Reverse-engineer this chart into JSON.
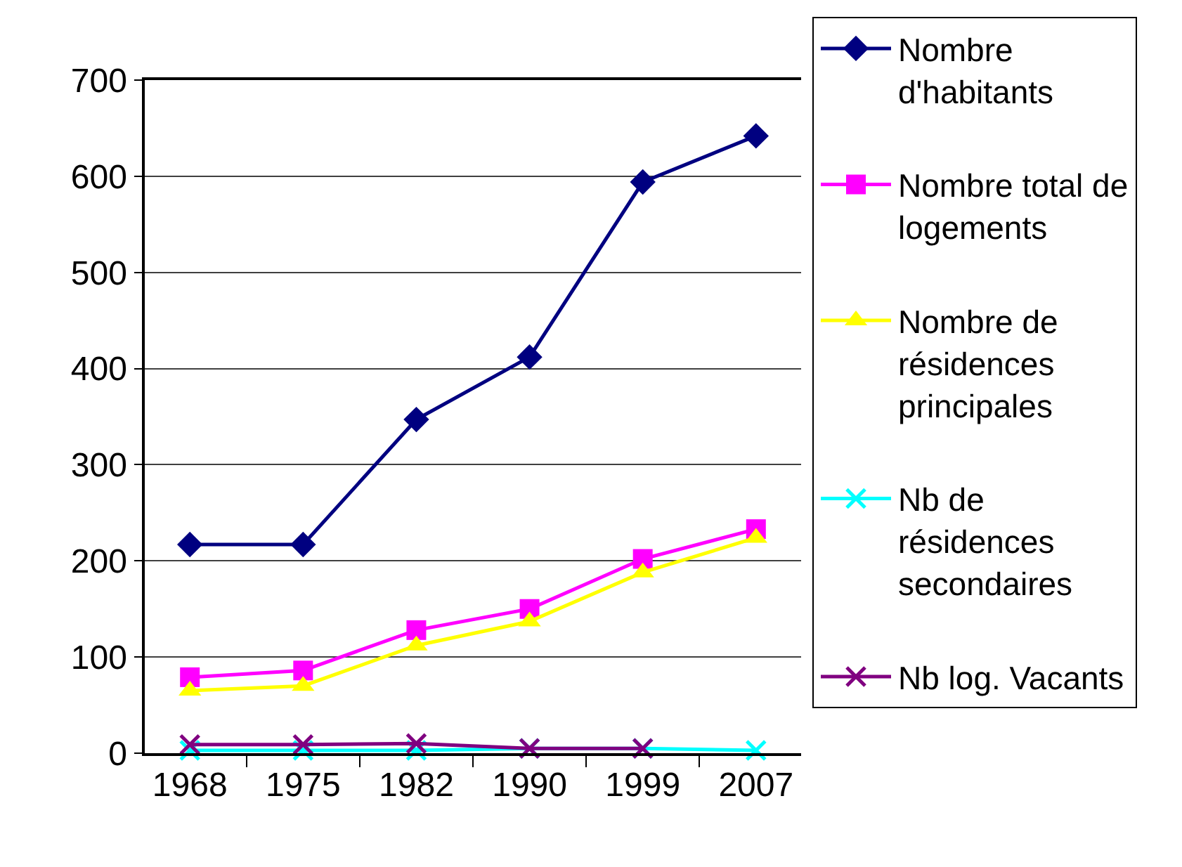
{
  "chart_data": {
    "type": "line",
    "categories": [
      "1968",
      "1975",
      "1982",
      "1990",
      "1999",
      "2007"
    ],
    "ylim": [
      0,
      700
    ],
    "yticks": [
      0,
      100,
      200,
      300,
      400,
      500,
      600,
      700
    ],
    "grid": "y",
    "legend": "right",
    "line_style": "solid",
    "series": [
      {
        "name": "Nombre d'habitants",
        "color": "#000080",
        "marker": "diamond",
        "values": [
          217,
          217,
          347,
          412,
          594,
          642
        ]
      },
      {
        "name": "Nombre total de logements",
        "color": "#ff00ff",
        "marker": "square",
        "values": [
          79,
          86,
          128,
          150,
          202,
          233
        ]
      },
      {
        "name": "Nombre de résidences principales",
        "color": "#ffff00",
        "marker": "triangle",
        "values": [
          65,
          70,
          112,
          137,
          188,
          224
        ]
      },
      {
        "name": "Nb de résidences secondaires",
        "color": "#00ffff",
        "marker": "cross",
        "values": [
          3,
          3,
          3,
          5,
          5,
          3
        ]
      },
      {
        "name": "Nb log. Vacants",
        "color": "#800080",
        "marker": "cross",
        "values": [
          9,
          9,
          10,
          5,
          5,
          null
        ]
      }
    ]
  }
}
